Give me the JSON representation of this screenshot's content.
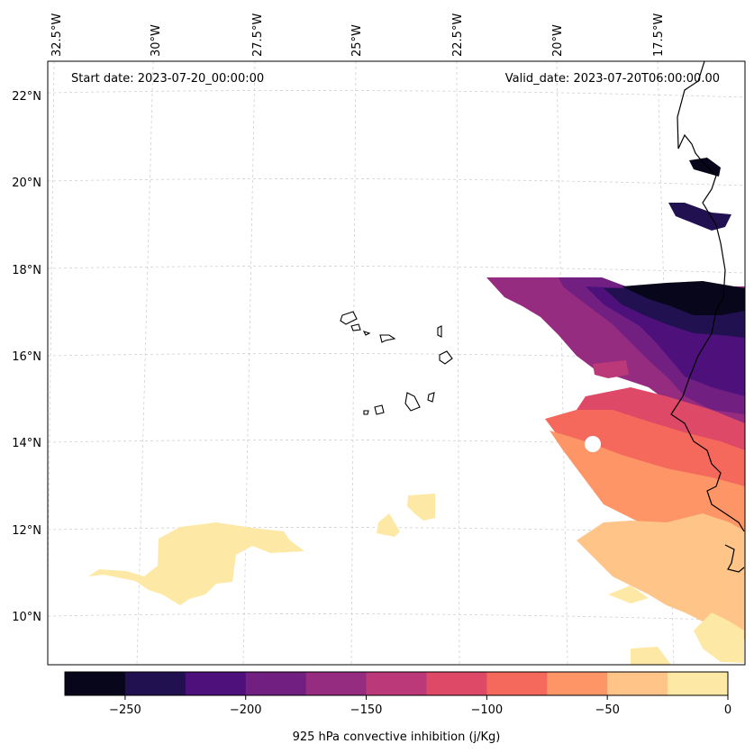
{
  "map": {
    "start_label": "Start date: 2023-07-20_00:00:00",
    "valid_label": "Valid_date: 2023-07-20T06:00:00.00",
    "lon_labels": [
      "32.5°W",
      "30°W",
      "27.5°W",
      "25°W",
      "22.5°W",
      "20°W",
      "17.5°W"
    ],
    "lat_labels": [
      "22°N",
      "20°N",
      "18°N",
      "16°N",
      "14°N",
      "12°N",
      "10°N"
    ]
  },
  "colorbar": {
    "title": "925 hPa convective inhibition (j/Kg)",
    "ticks": [
      "−250",
      "−200",
      "−150",
      "−100",
      "−50",
      "0"
    ],
    "colors": [
      "#07061a",
      "#221150",
      "#4e117b",
      "#711f81",
      "#952c80",
      "#bb3978",
      "#de4968",
      "#f4695c",
      "#fd9567",
      "#fec488",
      "#fde9a5"
    ],
    "range": [
      -275,
      0
    ]
  }
}
